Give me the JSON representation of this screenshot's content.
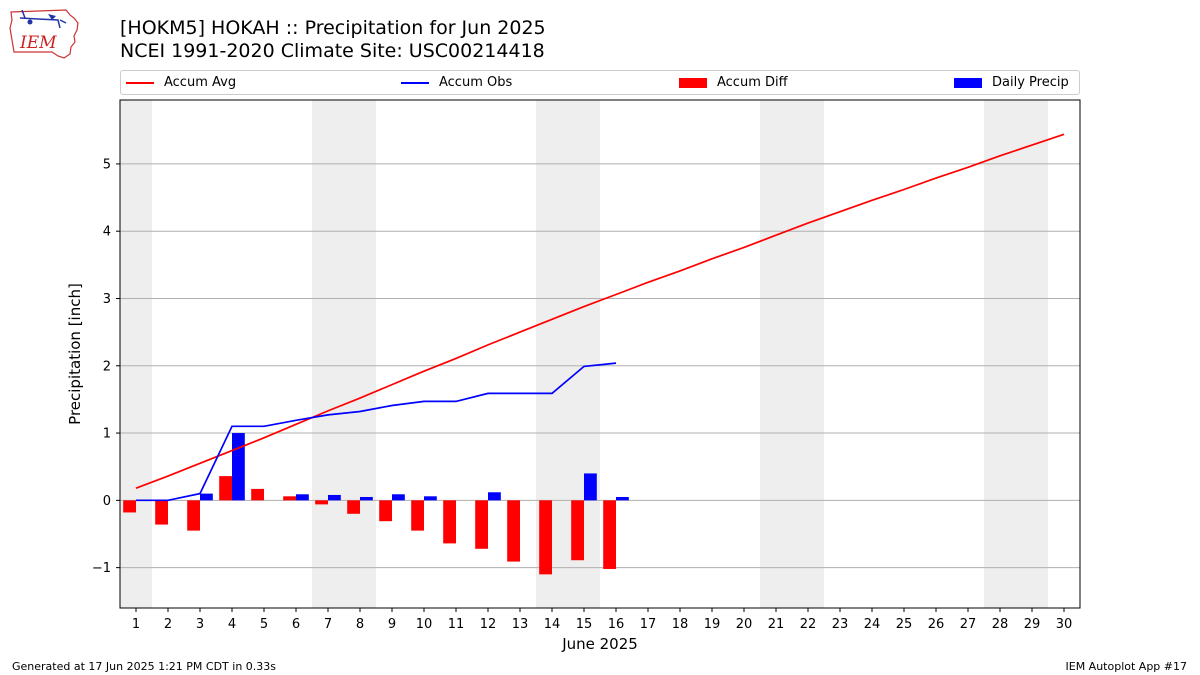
{
  "chart_data": {
    "type": "bar",
    "title": "[HOKM5] HOKAH :: Precipitation for Jun 2025",
    "subtitle": "NCEI 1991-2020 Climate Site: USC00214418",
    "xlabel": "June 2025",
    "ylabel": "Precipitation [inch]",
    "xlim": [
      0.5,
      30.5
    ],
    "ylim": [
      -1.6,
      5.95
    ],
    "x_ticks": [
      1,
      2,
      3,
      4,
      5,
      6,
      7,
      8,
      9,
      10,
      11,
      12,
      13,
      14,
      15,
      16,
      17,
      18,
      19,
      20,
      21,
      22,
      23,
      24,
      25,
      26,
      27,
      28,
      29,
      30
    ],
    "y_ticks": [
      -1,
      0,
      1,
      2,
      3,
      4,
      5
    ],
    "grid": "horizontal",
    "legend_placement": "top",
    "weekend_shading": [
      [
        0.5,
        1.5
      ],
      [
        6.5,
        8.5
      ],
      [
        13.5,
        15.5
      ],
      [
        20.5,
        22.5
      ],
      [
        27.5,
        29.5
      ]
    ],
    "series": [
      {
        "name": "Accum Avg",
        "kind": "line",
        "color": "#ff0000",
        "x": [
          1,
          2,
          3,
          4,
          5,
          6,
          7,
          8,
          9,
          10,
          11,
          12,
          13,
          14,
          15,
          16,
          17,
          18,
          19,
          20,
          21,
          22,
          23,
          24,
          25,
          26,
          27,
          28,
          29,
          30
        ],
        "values": [
          0.18,
          0.36,
          0.55,
          0.74,
          0.93,
          1.13,
          1.33,
          1.52,
          1.72,
          1.92,
          2.11,
          2.31,
          2.5,
          2.69,
          2.88,
          3.06,
          3.24,
          3.41,
          3.59,
          3.76,
          3.94,
          4.12,
          4.29,
          4.46,
          4.62,
          4.79,
          4.95,
          5.12,
          5.28,
          5.44
        ]
      },
      {
        "name": "Accum Obs",
        "kind": "line",
        "color": "#0000ff",
        "x": [
          1,
          2,
          3,
          4,
          5,
          6,
          7,
          8,
          9,
          10,
          11,
          12,
          13,
          14,
          15,
          16
        ],
        "values": [
          0.0,
          0.0,
          0.1,
          1.1,
          1.1,
          1.19,
          1.27,
          1.32,
          1.41,
          1.47,
          1.47,
          1.59,
          1.59,
          1.59,
          1.99,
          2.04
        ]
      },
      {
        "name": "Accum Diff",
        "kind": "bar",
        "color": "#ff0000",
        "x": [
          1,
          2,
          3,
          4,
          5,
          6,
          7,
          8,
          9,
          10,
          11,
          12,
          13,
          14,
          15,
          16
        ],
        "values": [
          -0.18,
          -0.36,
          -0.45,
          0.36,
          0.17,
          0.06,
          -0.06,
          -0.2,
          -0.31,
          -0.45,
          -0.64,
          -0.72,
          -0.91,
          -1.1,
          -0.89,
          -1.02
        ]
      },
      {
        "name": "Daily Precip",
        "kind": "bar",
        "color": "#0000ff",
        "x": [
          1,
          2,
          3,
          4,
          5,
          6,
          7,
          8,
          9,
          10,
          11,
          12,
          13,
          14,
          15,
          16
        ],
        "values": [
          0.0,
          0.0,
          0.1,
          1.0,
          0.0,
          0.09,
          0.08,
          0.05,
          0.09,
          0.06,
          0.0,
          0.12,
          0.0,
          0.0,
          0.4,
          0.05
        ]
      }
    ]
  },
  "footer": {
    "left": "Generated at 17 Jun 2025 1:21 PM CDT in 0.33s",
    "right": "IEM Autoplot App #17"
  },
  "logo": {
    "text": "IEM",
    "icon": "iowa-state-outline-icon"
  },
  "colors": {
    "weekend_band": "#eeeeee",
    "grid": "#b0b0b0",
    "red": "#ff0000",
    "blue": "#0000ff"
  }
}
